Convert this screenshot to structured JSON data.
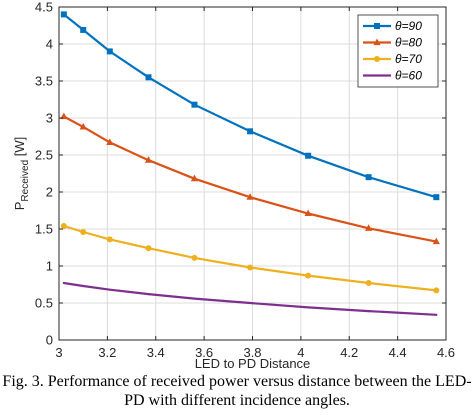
{
  "chart_data": {
    "type": "line",
    "xlabel": "LED to PD Distance",
    "ylabel_main": "P",
    "ylabel_sub": "Received",
    "ylabel_unit": " [W]",
    "xlim": [
      3.0,
      4.6
    ],
    "ylim": [
      0,
      4.5
    ],
    "xticks": [
      "3",
      "3.2",
      "3.4",
      "3.6",
      "3.8",
      "4",
      "4.2",
      "4.4",
      "4.6"
    ],
    "yticks": [
      "0",
      "0.5",
      "1",
      "1.5",
      "2",
      "2.5",
      "3",
      "3.5",
      "4",
      "4.5"
    ],
    "grid": true,
    "legend_position": "top-right",
    "series": [
      {
        "name": "θ=90",
        "color": "#0072BD",
        "marker": "square",
        "x": [
          3.02,
          3.1,
          3.21,
          3.37,
          3.56,
          3.79,
          4.03,
          4.28,
          4.56
        ],
        "y": [
          4.4,
          4.19,
          3.9,
          3.55,
          3.18,
          2.82,
          2.49,
          2.2,
          1.93
        ]
      },
      {
        "name": "θ=80",
        "color": "#D95319",
        "marker": "triangle",
        "x": [
          3.02,
          3.1,
          3.21,
          3.37,
          3.56,
          3.79,
          4.03,
          4.28,
          4.56
        ],
        "y": [
          3.02,
          2.88,
          2.67,
          2.43,
          2.18,
          1.93,
          1.71,
          1.51,
          1.33
        ]
      },
      {
        "name": "θ=70",
        "color": "#EDB120",
        "marker": "circle",
        "x": [
          3.02,
          3.1,
          3.21,
          3.37,
          3.56,
          3.79,
          4.03,
          4.28,
          4.56
        ],
        "y": [
          1.54,
          1.46,
          1.36,
          1.24,
          1.11,
          0.98,
          0.87,
          0.77,
          0.67
        ]
      },
      {
        "name": "θ=60",
        "color": "#7E2F8E",
        "marker": "none",
        "x": [
          3.02,
          3.1,
          3.21,
          3.37,
          3.56,
          3.79,
          4.03,
          4.28,
          4.56
        ],
        "y": [
          0.77,
          0.73,
          0.68,
          0.62,
          0.56,
          0.5,
          0.44,
          0.39,
          0.34
        ]
      }
    ]
  },
  "caption": {
    "line1": "Fig. 3. Performance of received power versus distance between the LED-",
    "line2": "PD with different incidence angles."
  }
}
